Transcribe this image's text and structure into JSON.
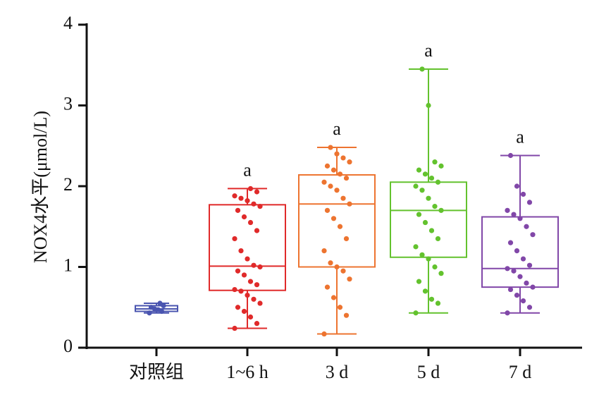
{
  "chart_data": {
    "type": "box",
    "y_label": "NOX4水平(μmol/L)",
    "categories": [
      "对照组",
      "1~6 h",
      "3 d",
      "5 d",
      "7 d"
    ],
    "ylim": [
      0,
      4
    ],
    "yticks": [
      0,
      1,
      2,
      3,
      4
    ],
    "boxes": [
      {
        "color": "#4a55b0",
        "min": 0.43,
        "q1": 0.45,
        "median": 0.48,
        "q3": 0.52,
        "max": 0.55,
        "points": [
          0.43,
          0.45,
          0.47,
          0.48,
          0.5,
          0.52,
          0.55
        ]
      },
      {
        "color": "#e02a2a",
        "min": 0.24,
        "q1": 0.71,
        "median": 1.01,
        "q3": 1.77,
        "max": 1.97,
        "annotation": "a",
        "points": [
          0.24,
          0.3,
          0.38,
          0.45,
          0.5,
          0.55,
          0.6,
          0.65,
          0.7,
          0.72,
          0.78,
          0.82,
          0.9,
          0.95,
          1.0,
          1.02,
          1.1,
          1.2,
          1.35,
          1.45,
          1.55,
          1.62,
          1.7,
          1.75,
          1.78,
          1.82,
          1.85,
          1.88,
          1.93,
          1.97
        ]
      },
      {
        "color": "#ed7430",
        "min": 0.17,
        "q1": 1.0,
        "median": 1.78,
        "q3": 2.14,
        "max": 2.48,
        "annotation": "a",
        "points": [
          0.17,
          0.4,
          0.5,
          0.62,
          0.75,
          0.85,
          0.95,
          1.0,
          1.05,
          1.2,
          1.35,
          1.5,
          1.6,
          1.7,
          1.78,
          1.85,
          1.95,
          2.0,
          2.05,
          2.1,
          2.15,
          2.2,
          2.25,
          2.3,
          2.35,
          2.4,
          2.48
        ]
      },
      {
        "color": "#63c22e",
        "min": 0.43,
        "q1": 1.12,
        "median": 1.7,
        "q3": 2.05,
        "max": 3.45,
        "annotation": "a",
        "points": [
          0.43,
          0.55,
          0.6,
          0.7,
          0.82,
          0.92,
          1.0,
          1.1,
          1.15,
          1.25,
          1.35,
          1.45,
          1.55,
          1.65,
          1.7,
          1.75,
          1.85,
          1.95,
          2.0,
          2.05,
          2.1,
          2.15,
          2.2,
          2.25,
          2.3,
          3.0,
          3.45
        ]
      },
      {
        "color": "#8147a8",
        "min": 0.43,
        "q1": 0.75,
        "median": 0.98,
        "q3": 1.62,
        "max": 2.38,
        "annotation": "a",
        "points": [
          0.43,
          0.5,
          0.58,
          0.65,
          0.72,
          0.75,
          0.8,
          0.88,
          0.95,
          0.98,
          1.02,
          1.1,
          1.2,
          1.3,
          1.4,
          1.5,
          1.6,
          1.65,
          1.7,
          1.8,
          1.9,
          2.0,
          2.38
        ]
      }
    ]
  }
}
